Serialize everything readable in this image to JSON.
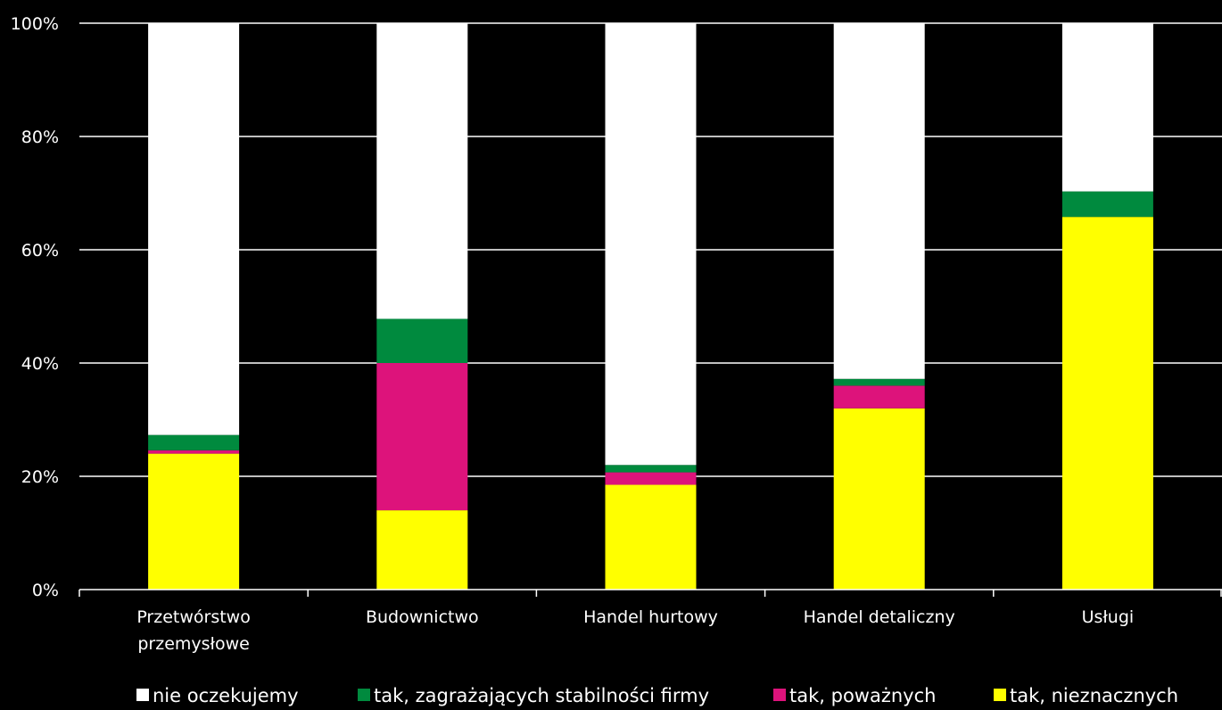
{
  "chart_data": {
    "type": "bar",
    "stacked": true,
    "percent": true,
    "title": "",
    "xlabel": "",
    "ylabel": "",
    "ylim": [
      0,
      100
    ],
    "yticks": [
      "0%",
      "20%",
      "40%",
      "60%",
      "80%",
      "100%"
    ],
    "grid": true,
    "legend_position": "bottom",
    "categories": [
      [
        "Przetwórstwo",
        "przemysłowe"
      ],
      [
        "Budownictwo"
      ],
      [
        "Handel hurtowy"
      ],
      [
        "Handel detaliczny"
      ],
      [
        "Usługi"
      ]
    ],
    "series": [
      {
        "name": "tak, nieznacznych",
        "color": "#FFFF00",
        "values": [
          24.0,
          14.0,
          18.5,
          32.0,
          65.8
        ]
      },
      {
        "name": "tak, poważnych",
        "color": "#DD137B",
        "values": [
          0.6,
          26.0,
          2.2,
          4.0,
          0.0
        ]
      },
      {
        "name": "tak, zagrażających stabilności firmy",
        "color": "#008A3E",
        "values": [
          2.7,
          7.8,
          1.3,
          1.2,
          4.5
        ]
      },
      {
        "name": "nie oczekujemy",
        "color": "#FFFFFF",
        "values": [
          72.7,
          52.2,
          78.0,
          62.8,
          29.7
        ]
      }
    ],
    "legend_order": [
      "nie oczekujemy",
      "tak, zagrażających stabilności firmy",
      "tak, poważnych",
      "tak, nieznacznych"
    ]
  }
}
